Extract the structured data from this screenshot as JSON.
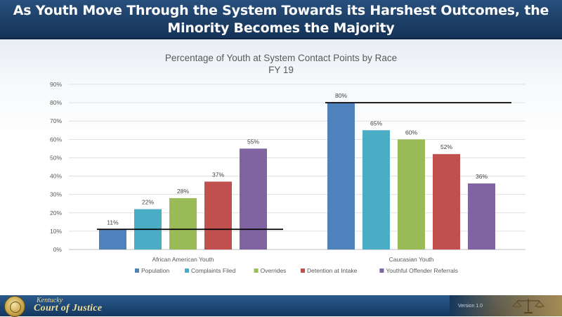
{
  "header": {
    "title": "As Youth Move Through the System Towards its Harshest Outcomes, the Minority Becomes the Majority"
  },
  "chart_data": {
    "type": "bar",
    "title": "Percentage of Youth at System Contact Points by Race",
    "subtitle": "FY 19",
    "categories": [
      "African American Youth",
      "Caucasian Youth"
    ],
    "series": [
      {
        "name": "Population",
        "color": "#4f81bd",
        "values": [
          11,
          80
        ]
      },
      {
        "name": "Complaints Filed",
        "color": "#4bacc6",
        "values": [
          22,
          65
        ]
      },
      {
        "name": "Overrides",
        "color": "#9bbb59",
        "values": [
          28,
          60
        ]
      },
      {
        "name": "Detention at Intake",
        "color": "#c0504d",
        "values": [
          37,
          52
        ]
      },
      {
        "name": "Youthful Offender Referrals",
        "color": "#8064a2",
        "values": [
          55,
          36
        ]
      }
    ],
    "data_labels": [
      [
        "11%",
        "22%",
        "28%",
        "37%",
        "55%"
      ],
      [
        "80%",
        "65%",
        "60%",
        "52%",
        "36%"
      ]
    ],
    "reference_lines": [
      11,
      80
    ],
    "ylim": [
      0,
      90
    ],
    "y_ticks": [
      0,
      10,
      20,
      30,
      40,
      50,
      60,
      70,
      80,
      90
    ],
    "y_tick_labels": [
      "0%",
      "10%",
      "20%",
      "30%",
      "40%",
      "50%",
      "60%",
      "70%",
      "80%",
      "90%"
    ],
    "grid": true,
    "legend_position": "bottom"
  },
  "footer": {
    "brand_top": "Kentucky",
    "brand_main": "Court of Justice",
    "version": "Version 1.0",
    "seal_icon": "seal-icon",
    "scales_icon": "scales-of-justice-icon"
  }
}
